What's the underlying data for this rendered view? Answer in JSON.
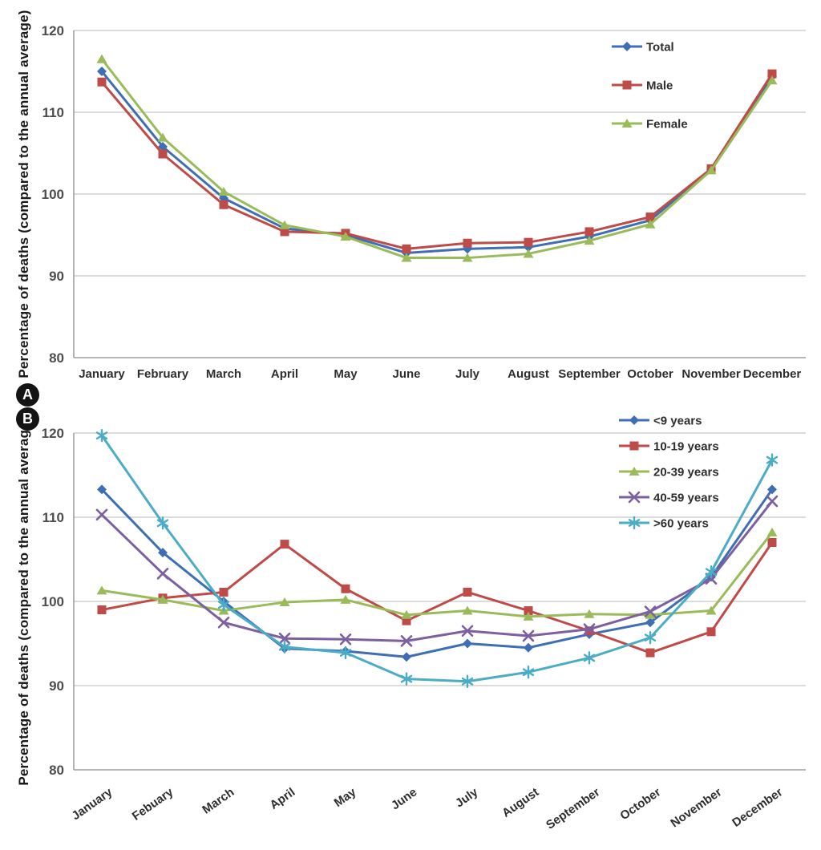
{
  "chart_data": [
    {
      "type": "line",
      "panel": "A",
      "title": "",
      "xlabel": "",
      "ylabel": "Percentage of deaths (compared to the annual average)",
      "ylim": [
        80,
        120
      ],
      "yticks": [
        80,
        90,
        100,
        110,
        120
      ],
      "grid": true,
      "legend_position": "top-right-inside",
      "x_label_rotation": 0,
      "categories": [
        "January",
        "February",
        "March",
        "April",
        "May",
        "June",
        "July",
        "August",
        "September",
        "October",
        "November",
        "December"
      ],
      "series": [
        {
          "name": "Total",
          "marker": "diamond",
          "color": "#3E6FB5",
          "values": [
            115.0,
            105.8,
            99.5,
            95.8,
            95.0,
            92.8,
            93.3,
            93.5,
            94.8,
            96.8,
            103.0,
            114.4
          ]
        },
        {
          "name": "Male",
          "marker": "square",
          "color": "#BE4B48",
          "values": [
            113.7,
            104.9,
            98.7,
            95.4,
            95.2,
            93.3,
            94.0,
            94.1,
            95.4,
            97.2,
            103.1,
            114.7
          ]
        },
        {
          "name": "Female",
          "marker": "triangle",
          "color": "#9ABB59",
          "values": [
            116.5,
            106.9,
            100.3,
            96.2,
            94.8,
            92.2,
            92.2,
            92.7,
            94.3,
            96.3,
            102.9,
            113.9
          ]
        }
      ]
    },
    {
      "type": "line",
      "panel": "B",
      "title": "",
      "xlabel": "",
      "ylabel": "Percentage of deaths (compared to the annual average)",
      "ylim": [
        80,
        120
      ],
      "yticks": [
        80,
        90,
        100,
        110,
        120
      ],
      "grid": true,
      "legend_position": "top-right-inside",
      "x_label_rotation": -35,
      "categories": [
        "January",
        "Febuary",
        "March",
        "April",
        "May",
        "June",
        "July",
        "August",
        "September",
        "October",
        "November",
        "December"
      ],
      "series": [
        {
          "name": "<9 years",
          "marker": "diamond",
          "color": "#3E6FB5",
          "values": [
            113.3,
            105.8,
            100.0,
            94.4,
            94.1,
            93.4,
            95.0,
            94.5,
            96.1,
            97.5,
            102.9,
            113.3
          ]
        },
        {
          "name": "10-19 years",
          "marker": "square",
          "color": "#BE4B48",
          "values": [
            99.0,
            100.4,
            101.1,
            106.8,
            101.5,
            97.7,
            101.1,
            98.9,
            96.5,
            93.9,
            96.4,
            107.0
          ]
        },
        {
          "name": "20-39 years",
          "marker": "triangle",
          "color": "#9ABB59",
          "values": [
            101.3,
            100.2,
            98.9,
            99.9,
            100.2,
            98.4,
            98.9,
            98.2,
            98.5,
            98.4,
            98.9,
            108.2
          ]
        },
        {
          "name": "40-59 years",
          "marker": "x",
          "color": "#7D60A0",
          "values": [
            110.3,
            103.3,
            97.5,
            95.6,
            95.5,
            95.3,
            96.5,
            95.9,
            96.7,
            98.8,
            102.7,
            111.9
          ]
        },
        {
          "name": ">60 years",
          "marker": "asterisk",
          "color": "#4BACC6",
          "values": [
            119.7,
            109.3,
            99.6,
            94.6,
            93.9,
            90.8,
            90.5,
            91.6,
            93.3,
            95.7,
            103.5,
            116.8
          ]
        }
      ]
    }
  ],
  "style": {
    "grid_color": "#c7c7c7",
    "axis_color": "#9e9e9e",
    "tick_text_color": "#4d4d4d",
    "label_text_color": "#2e2e2e"
  }
}
